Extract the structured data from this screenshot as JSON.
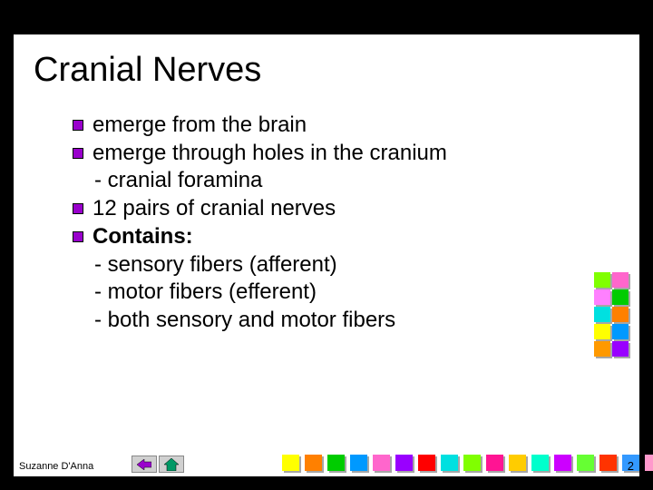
{
  "slide": {
    "title": "Cranial Nerves",
    "bullets": [
      {
        "text": "emerge from the brain",
        "bold": false
      },
      {
        "text": "emerge through holes in the cranium",
        "bold": false
      },
      {
        "text": "12 pairs of cranial nerves",
        "bold": false
      },
      {
        "text": "Contains:",
        "bold": true
      }
    ],
    "sublines_after_b1": [
      "- cranial foramina"
    ],
    "sublines_after_b3": [
      "- sensory fibers (afferent)",
      "- motor fibers (efferent)",
      "- both sensory and motor fibers"
    ],
    "footer_author": "Suzanne D'Anna",
    "page_number": "2",
    "bullet_color": "#9900cc",
    "deco_right": [
      [
        "#80ff00",
        "#ff66cc"
      ],
      [
        "#ff80ff",
        "#00cc00"
      ],
      [
        "#00e0e0",
        "#ff8000"
      ],
      [
        "#ffff00",
        "#0099ff"
      ],
      [
        "#ff9900",
        "#9900ff"
      ]
    ],
    "deco_bottom": [
      "#ffff00",
      "#ff8000",
      "#00cc00",
      "#0099ff",
      "#ff66cc",
      "#9900ff",
      "#ff0000",
      "#00e0e0",
      "#80ff00",
      "#ff1493",
      "#ffcc00",
      "#00ffcc",
      "#cc00ff",
      "#66ff33",
      "#ff3300",
      "#3399ff",
      "#ff99cc",
      "#99ff00",
      "#ff6600"
    ],
    "nav_back_color": "#9900cc",
    "nav_home_color": "#009966"
  }
}
